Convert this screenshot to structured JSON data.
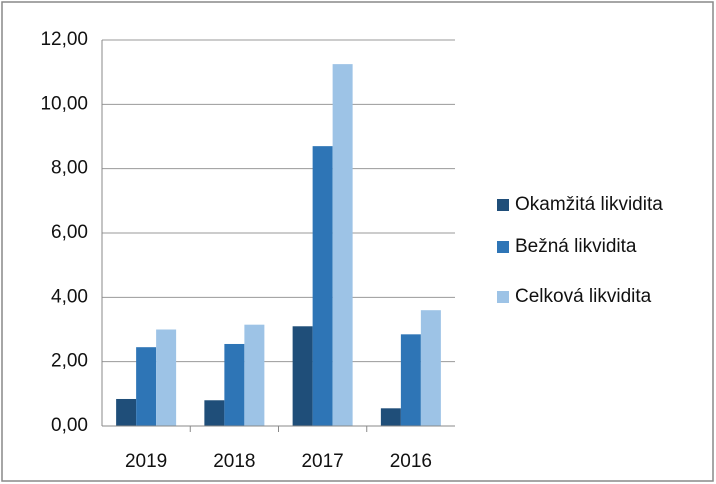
{
  "chart_data": {
    "type": "bar",
    "categories": [
      "2019",
      "2018",
      "2017",
      "2016"
    ],
    "series": [
      {
        "name": "Okamžitá likvidita",
        "color": "#1f4e79",
        "values": [
          0.84,
          0.8,
          3.1,
          0.55
        ]
      },
      {
        "name": "Bežná likvidita",
        "color": "#2e75b6",
        "values": [
          2.45,
          2.55,
          8.7,
          2.85
        ]
      },
      {
        "name": "Celková likvidita",
        "color": "#9dc3e6",
        "values": [
          3.0,
          3.15,
          11.25,
          3.6
        ]
      }
    ],
    "ylim": [
      0,
      12
    ],
    "yticks": [
      {
        "value": 0,
        "label": "0,00"
      },
      {
        "value": 2,
        "label": "2,00"
      },
      {
        "value": 4,
        "label": "4,00"
      },
      {
        "value": 6,
        "label": "6,00"
      },
      {
        "value": 8,
        "label": "8,00"
      },
      {
        "value": 10,
        "label": "10,00"
      },
      {
        "value": 12,
        "label": "12,00"
      }
    ],
    "grid": true,
    "legend": "right"
  }
}
